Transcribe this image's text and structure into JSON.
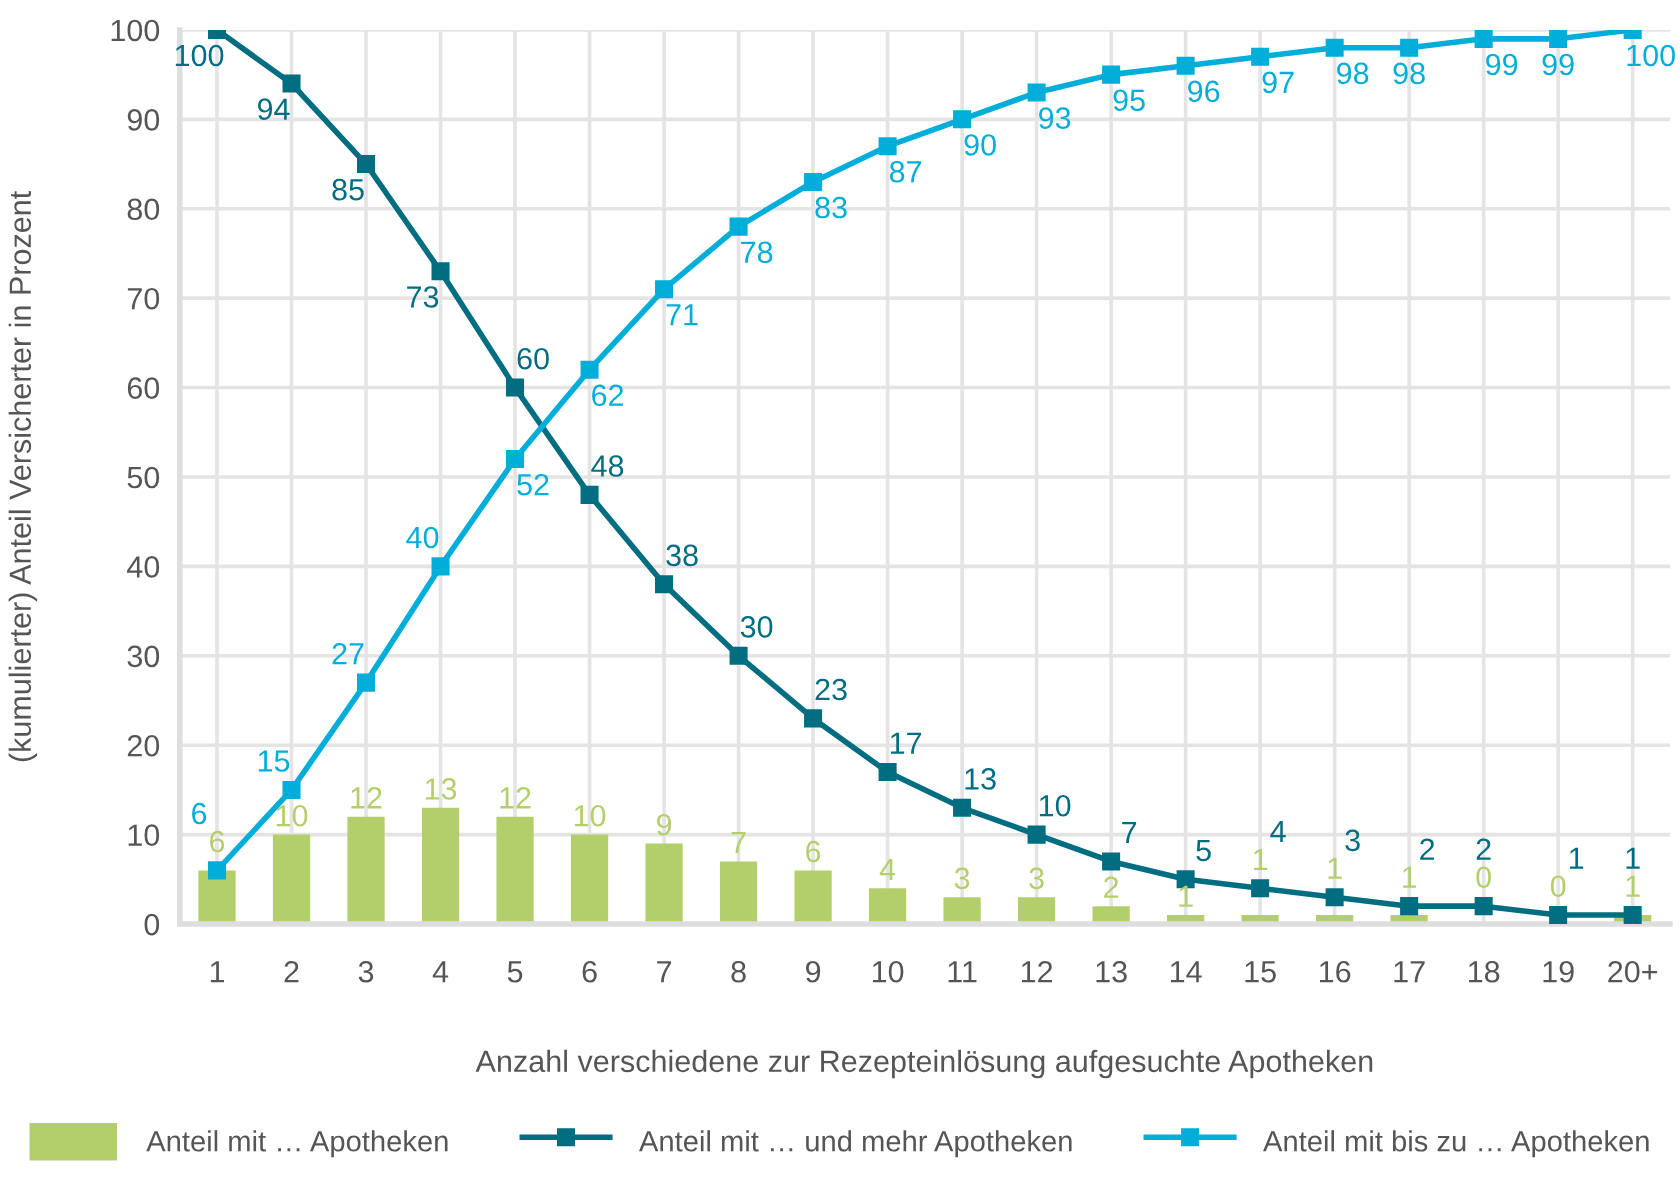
{
  "chart_data": {
    "type": "bar",
    "xlabel": "Anzahl verschiedene zur Rezepteinlösung aufgesuchte Apotheken",
    "ylabel": "(kumulierter) Anteil Versicherter in Prozent",
    "categories": [
      "1",
      "2",
      "3",
      "4",
      "5",
      "6",
      "7",
      "8",
      "9",
      "10",
      "11",
      "12",
      "13",
      "14",
      "15",
      "16",
      "17",
      "18",
      "19",
      "20+"
    ],
    "series": [
      {
        "name": "Anteil mit … Apotheken",
        "color": "#b3cf6b",
        "values": [
          6,
          10,
          12,
          13,
          12,
          10,
          9,
          7,
          6,
          4,
          3,
          3,
          2,
          1,
          1,
          1,
          1,
          0,
          0,
          1
        ]
      },
      {
        "name": "Anteil mit … und mehr Apotheken",
        "type": "line",
        "color": "#006e80",
        "values": [
          100,
          94,
          85,
          73,
          60,
          48,
          38,
          30,
          23,
          17,
          13,
          10,
          7,
          5,
          4,
          3,
          2,
          2,
          1,
          1
        ]
      },
      {
        "name": "Anteil mit bis zu … Apotheken",
        "type": "line",
        "color": "#00aed9",
        "values": [
          6,
          15,
          27,
          40,
          52,
          62,
          71,
          78,
          83,
          87,
          90,
          93,
          95,
          96,
          97,
          98,
          98,
          99,
          99,
          100
        ]
      }
    ],
    "ylim": [
      0,
      100
    ],
    "yticks": [
      0,
      10,
      20,
      30,
      40,
      50,
      60,
      70,
      80,
      90,
      100
    ],
    "grid": true,
    "legend": "bottom",
    "marker": "square",
    "data_labels": true
  }
}
